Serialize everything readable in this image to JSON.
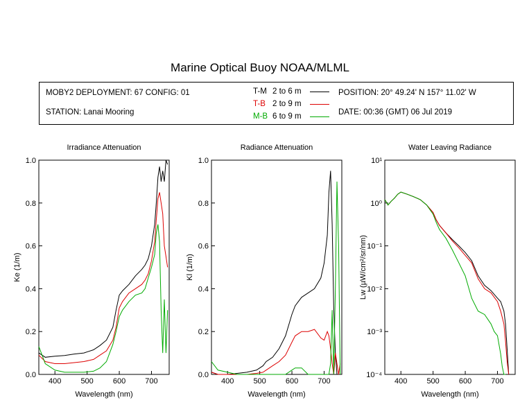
{
  "title": "Marine Optical Buoy NOAA/MLML",
  "info": {
    "deployment": "MOBY2 DEPLOYMENT: 67 CONFIG: 01",
    "station": "STATION: Lanai Mooring",
    "position": "POSITION: 20° 49.24' N   157° 11.02' W",
    "date": "DATE: 00:36 (GMT) 06 Jul 2019",
    "legend": [
      {
        "code": "T-M",
        "range": "2 to 6  m",
        "color": "#000000"
      },
      {
        "code": "T-B",
        "range": "2 to 9  m",
        "color": "#dd0000"
      },
      {
        "code": "M-B",
        "range": "6 to 9  m",
        "color": "#00aa00"
      }
    ]
  },
  "colors": {
    "T-M": "#000000",
    "T-B": "#dd0000",
    "M-B": "#00aa00"
  },
  "chart_data": [
    {
      "type": "line",
      "title": "Irradiance Attenuation",
      "xlabel": "Wavelength (nm)",
      "ylabel": "Ke  (1/m)",
      "xlim": [
        350,
        755
      ],
      "ylim": [
        0,
        1.0
      ],
      "xticks": [
        400,
        500,
        600,
        700
      ],
      "yticks": [
        0.0,
        0.2,
        0.4,
        0.6,
        0.8,
        1.0
      ],
      "ytick_labels": [
        "0.0",
        "0.2",
        "0.4",
        "0.6",
        "0.8",
        "1.0"
      ],
      "series": [
        {
          "name": "T-M",
          "color": "#000000",
          "x": [
            350,
            370,
            400,
            430,
            460,
            490,
            520,
            540,
            560,
            580,
            590,
            600,
            610,
            630,
            650,
            670,
            680,
            690,
            700,
            710,
            715,
            720,
            725,
            730,
            735,
            740,
            745,
            750
          ],
          "y": [
            0.1,
            0.08,
            0.085,
            0.088,
            0.095,
            0.1,
            0.115,
            0.135,
            0.16,
            0.22,
            0.3,
            0.37,
            0.39,
            0.42,
            0.46,
            0.49,
            0.51,
            0.54,
            0.6,
            0.7,
            0.8,
            0.92,
            0.97,
            0.9,
            0.95,
            0.9,
            1.0,
            0.98
          ]
        },
        {
          "name": "T-B",
          "color": "#dd0000",
          "x": [
            350,
            370,
            400,
            430,
            460,
            490,
            520,
            540,
            560,
            580,
            590,
            600,
            610,
            630,
            650,
            670,
            680,
            690,
            700,
            710,
            715,
            720,
            725,
            730,
            735,
            740,
            745,
            750
          ],
          "y": [
            0.09,
            0.06,
            0.05,
            0.05,
            0.055,
            0.06,
            0.07,
            0.09,
            0.11,
            0.16,
            0.22,
            0.31,
            0.34,
            0.38,
            0.4,
            0.42,
            0.44,
            0.47,
            0.53,
            0.62,
            0.72,
            0.82,
            0.85,
            0.8,
            0.75,
            0.6,
            0.55,
            0.5
          ]
        },
        {
          "name": "M-B",
          "color": "#00aa00",
          "x": [
            350,
            370,
            400,
            430,
            460,
            490,
            520,
            540,
            560,
            580,
            590,
            600,
            610,
            630,
            650,
            670,
            680,
            690,
            700,
            710,
            715,
            720,
            725,
            730,
            735,
            740,
            745,
            750
          ],
          "y": [
            0.13,
            0.05,
            0.02,
            0.01,
            0.01,
            0.01,
            0.015,
            0.03,
            0.06,
            0.14,
            0.2,
            0.27,
            0.3,
            0.34,
            0.37,
            0.38,
            0.4,
            0.45,
            0.5,
            0.56,
            0.66,
            0.7,
            0.62,
            0.3,
            0.1,
            0.35,
            0.1,
            0.3
          ]
        }
      ]
    },
    {
      "type": "line",
      "title": "Radiance Attenuation",
      "xlabel": "Wavelength (nm)",
      "ylabel": "Kl  (1/m)",
      "xlim": [
        350,
        755
      ],
      "ylim": [
        0,
        1.0
      ],
      "xticks": [
        400,
        500,
        600,
        700
      ],
      "yticks": [
        0.0,
        0.2,
        0.4,
        0.6,
        0.8,
        1.0
      ],
      "ytick_labels": [
        "0.0",
        "0.2",
        "0.4",
        "0.6",
        "0.8",
        "1.0"
      ],
      "series": [
        {
          "name": "T-M",
          "color": "#000000",
          "x": [
            350,
            370,
            400,
            430,
            460,
            490,
            510,
            520,
            540,
            560,
            580,
            600,
            610,
            620,
            630,
            650,
            670,
            690,
            700,
            710,
            715,
            720,
            725,
            730,
            735,
            740,
            745,
            750
          ],
          "y": [
            0.01,
            0.0,
            0.0,
            0.005,
            0.01,
            0.02,
            0.04,
            0.06,
            0.08,
            0.12,
            0.18,
            0.28,
            0.32,
            0.34,
            0.36,
            0.38,
            0.4,
            0.45,
            0.52,
            0.65,
            0.85,
            0.95,
            0.7,
            0.3,
            0.1,
            0.0,
            0.0,
            0.0
          ]
        },
        {
          "name": "T-B",
          "color": "#dd0000",
          "x": [
            350,
            370,
            400,
            430,
            460,
            490,
            510,
            520,
            540,
            560,
            580,
            600,
            610,
            620,
            630,
            650,
            670,
            690,
            700,
            710,
            715,
            720,
            725,
            730,
            735,
            740,
            745,
            750
          ],
          "y": [
            0.01,
            0.0,
            0.0,
            0.0,
            0.0,
            0.005,
            0.01,
            0.02,
            0.04,
            0.06,
            0.09,
            0.15,
            0.18,
            0.19,
            0.2,
            0.2,
            0.21,
            0.17,
            0.16,
            0.2,
            0.18,
            0.12,
            0.05,
            0.0,
            0.1,
            0.05,
            0.0,
            0.05
          ]
        },
        {
          "name": "M-B",
          "color": "#00aa00",
          "x": [
            350,
            370,
            400,
            430,
            460,
            490,
            510,
            520,
            540,
            560,
            580,
            600,
            610,
            620,
            630,
            650,
            670,
            690,
            700,
            710,
            715,
            720,
            725,
            730,
            735,
            740,
            745,
            750
          ],
          "y": [
            0.06,
            0.02,
            0.01,
            0.0,
            0.0,
            0.0,
            0.0,
            0.0,
            0.0,
            0.0,
            0.0,
            0.02,
            0.03,
            0.03,
            0.03,
            0.0,
            0.0,
            0.0,
            0.0,
            0.0,
            0.0,
            0.05,
            0.3,
            0.0,
            0.4,
            0.9,
            0.6,
            0.0
          ]
        }
      ]
    },
    {
      "type": "line",
      "title": "Water Leaving Radiance",
      "xlabel": "Wavelength (nm)",
      "ylabel": "Lw  (µW/cm²/sr/nm)",
      "yscale": "log",
      "xlim": [
        350,
        755
      ],
      "ylim": [
        0.0001,
        10
      ],
      "xticks": [
        400,
        500,
        600,
        700
      ],
      "yticks": [
        0.0001,
        0.001,
        0.01,
        0.1,
        1,
        10
      ],
      "ytick_labels": [
        "10⁻⁴",
        "10⁻³",
        "10⁻²",
        "10⁻¹",
        "10⁰",
        "10¹"
      ],
      "series": [
        {
          "name": "T-M",
          "color": "#000000",
          "x": [
            350,
            360,
            370,
            380,
            390,
            400,
            420,
            440,
            460,
            480,
            500,
            510,
            520,
            540,
            560,
            580,
            600,
            620,
            640,
            660,
            680,
            700,
            710,
            720,
            725,
            730,
            735
          ],
          "y": [
            1.2,
            0.9,
            1.1,
            1.3,
            1.6,
            1.8,
            1.6,
            1.4,
            1.2,
            0.9,
            0.6,
            0.4,
            0.3,
            0.2,
            0.14,
            0.1,
            0.07,
            0.045,
            0.02,
            0.012,
            0.009,
            0.006,
            0.005,
            0.003,
            0.0015,
            0.0004,
            0.0001
          ]
        },
        {
          "name": "T-B",
          "color": "#dd0000",
          "x": [
            350,
            360,
            370,
            380,
            390,
            400,
            420,
            440,
            460,
            480,
            500,
            510,
            520,
            540,
            560,
            580,
            600,
            620,
            640,
            660,
            680,
            700,
            710,
            720,
            725,
            730,
            735
          ],
          "y": [
            1.2,
            0.9,
            1.1,
            1.3,
            1.6,
            1.8,
            1.6,
            1.4,
            1.2,
            0.9,
            0.6,
            0.4,
            0.3,
            0.2,
            0.13,
            0.09,
            0.06,
            0.04,
            0.017,
            0.01,
            0.008,
            0.005,
            0.003,
            0.0015,
            0.0006,
            0.0002,
            0.0001
          ]
        },
        {
          "name": "M-B",
          "color": "#00aa00",
          "x": [
            350,
            360,
            370,
            380,
            390,
            400,
            420,
            440,
            460,
            480,
            500,
            510,
            520,
            540,
            560,
            580,
            600,
            620,
            640,
            660,
            680,
            690,
            700,
            710,
            715,
            720,
            725
          ],
          "y": [
            1.2,
            0.9,
            1.1,
            1.3,
            1.6,
            1.8,
            1.6,
            1.4,
            1.2,
            0.9,
            0.55,
            0.35,
            0.24,
            0.15,
            0.08,
            0.04,
            0.02,
            0.006,
            0.003,
            0.0025,
            0.0015,
            0.001,
            0.0008,
            0.0003,
            0.00015,
            0.0001,
            0.0001
          ]
        }
      ]
    }
  ]
}
